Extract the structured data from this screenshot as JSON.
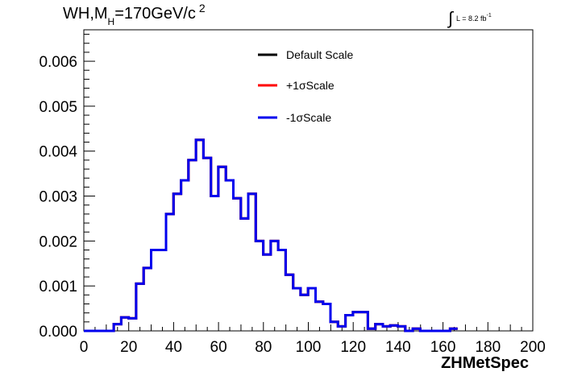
{
  "title": {
    "main": "WH,M",
    "sub": "H",
    "mid": "=170GeV/c",
    "sup": "2"
  },
  "lumi": {
    "integral_symbol": "∫",
    "text": "L = 8.2 fb",
    "sup": "-1"
  },
  "chart_data": {
    "type": "line",
    "xlabel": "ZHMetSpec",
    "ylabel": "",
    "xlim": [
      0,
      200
    ],
    "ylim": [
      0,
      0.0067
    ],
    "x_ticks": [
      0,
      20,
      40,
      60,
      80,
      100,
      120,
      140,
      160,
      180,
      200
    ],
    "y_ticks": [
      "0.000",
      "0.001",
      "0.002",
      "0.003",
      "0.004",
      "0.005",
      "0.006"
    ],
    "bin_width": 3.33,
    "legend_position": "top-center",
    "series": [
      {
        "name": "Default Scale",
        "color": "#000000",
        "values": [
          0,
          0,
          0,
          0,
          0.00015,
          0.0003,
          0.00028,
          0.00105,
          0.0014,
          0.0018,
          0.0018,
          0.0026,
          0.00305,
          0.00335,
          0.0038,
          0.00425,
          0.00385,
          0.003,
          0.00365,
          0.00335,
          0.00295,
          0.0025,
          0.00305,
          0.002,
          0.0017,
          0.002,
          0.0018,
          0.00125,
          0.00095,
          0.0008,
          0.00095,
          0.00065,
          0.0006,
          0.0002,
          0.0001,
          0.00035,
          0.00042,
          0.00042,
          5e-05,
          0.00015,
          0.0001,
          0.00012,
          0.0001,
          0,
          5e-05,
          0,
          0,
          0,
          0,
          5e-05
        ]
      },
      {
        "name": "+1σScale",
        "color": "#ff0000",
        "values": [
          0,
          0,
          0,
          0,
          0.00015,
          0.0003,
          0.00028,
          0.00105,
          0.0014,
          0.0018,
          0.0018,
          0.0026,
          0.00305,
          0.00335,
          0.0038,
          0.00425,
          0.00385,
          0.003,
          0.00365,
          0.00335,
          0.00295,
          0.0025,
          0.00305,
          0.002,
          0.0017,
          0.002,
          0.0018,
          0.00125,
          0.00095,
          0.0008,
          0.00095,
          0.00065,
          0.0006,
          0.0002,
          0.0001,
          0.00035,
          0.00042,
          0.00042,
          5e-05,
          0.00015,
          0.0001,
          0.00012,
          0.0001,
          0,
          5e-05,
          0,
          0,
          0,
          0,
          5e-05
        ]
      },
      {
        "name": "-1σScale",
        "color": "#0000ee",
        "values": [
          0,
          0,
          0,
          0,
          0.00015,
          0.0003,
          0.00028,
          0.00105,
          0.0014,
          0.0018,
          0.0018,
          0.0026,
          0.00305,
          0.00335,
          0.0038,
          0.00425,
          0.00385,
          0.003,
          0.00365,
          0.00335,
          0.00295,
          0.0025,
          0.00305,
          0.002,
          0.0017,
          0.002,
          0.0018,
          0.00125,
          0.00095,
          0.0008,
          0.00095,
          0.00065,
          0.0006,
          0.0002,
          0.0001,
          0.00035,
          0.00042,
          0.00042,
          5e-05,
          0.00015,
          0.0001,
          0.00012,
          0.0001,
          0,
          5e-05,
          0,
          0,
          0,
          0,
          5e-05
        ]
      }
    ]
  }
}
